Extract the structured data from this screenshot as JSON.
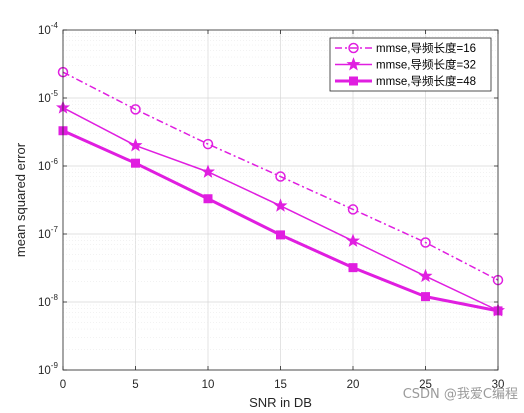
{
  "chart_data": {
    "type": "line",
    "xlabel": "SNR in DB",
    "ylabel": "mean squared error",
    "xlim": [
      0,
      30
    ],
    "ylim": [
      1e-09,
      0.0001
    ],
    "yscale": "log",
    "grid": true,
    "x_ticks": [
      "0",
      "5",
      "10",
      "15",
      "20",
      "25",
      "30"
    ],
    "y_ticks": [
      {
        "base": "10",
        "exp": "-9",
        "value": 1e-09
      },
      {
        "base": "10",
        "exp": "-8",
        "value": 1e-08
      },
      {
        "base": "10",
        "exp": "-7",
        "value": 1e-07
      },
      {
        "base": "10",
        "exp": "-6",
        "value": 1e-06
      },
      {
        "base": "10",
        "exp": "-5",
        "value": 1e-05
      },
      {
        "base": "10",
        "exp": "-4",
        "value": 0.0001
      }
    ],
    "legend_position": "top-right",
    "x": [
      0,
      5,
      10,
      15,
      20,
      25,
      30
    ],
    "series": [
      {
        "name": "mmse,导频长度=16",
        "color": "#e01ee0",
        "line": "dashdot",
        "marker": "circle",
        "values": [
          2.4e-05,
          6.8e-06,
          2.1e-06,
          7e-07,
          2.3e-07,
          7.5e-08,
          2.1e-08
        ]
      },
      {
        "name": "mmse,导频长度=32",
        "color": "#e01ee0",
        "line": "solid",
        "marker": "star",
        "values": [
          7.2e-06,
          2e-06,
          8.2e-07,
          2.6e-07,
          7.9e-08,
          2.4e-08,
          7.5e-09
        ]
      },
      {
        "name": "mmse,导频长度=48",
        "color": "#e01ee0",
        "line": "solid-thick",
        "marker": "square",
        "values": [
          3.3e-06,
          1.1e-06,
          3.3e-07,
          9.7e-08,
          3.2e-08,
          1.2e-08,
          7.4e-09
        ]
      }
    ]
  },
  "watermark": "CSDN @我爱C编程"
}
